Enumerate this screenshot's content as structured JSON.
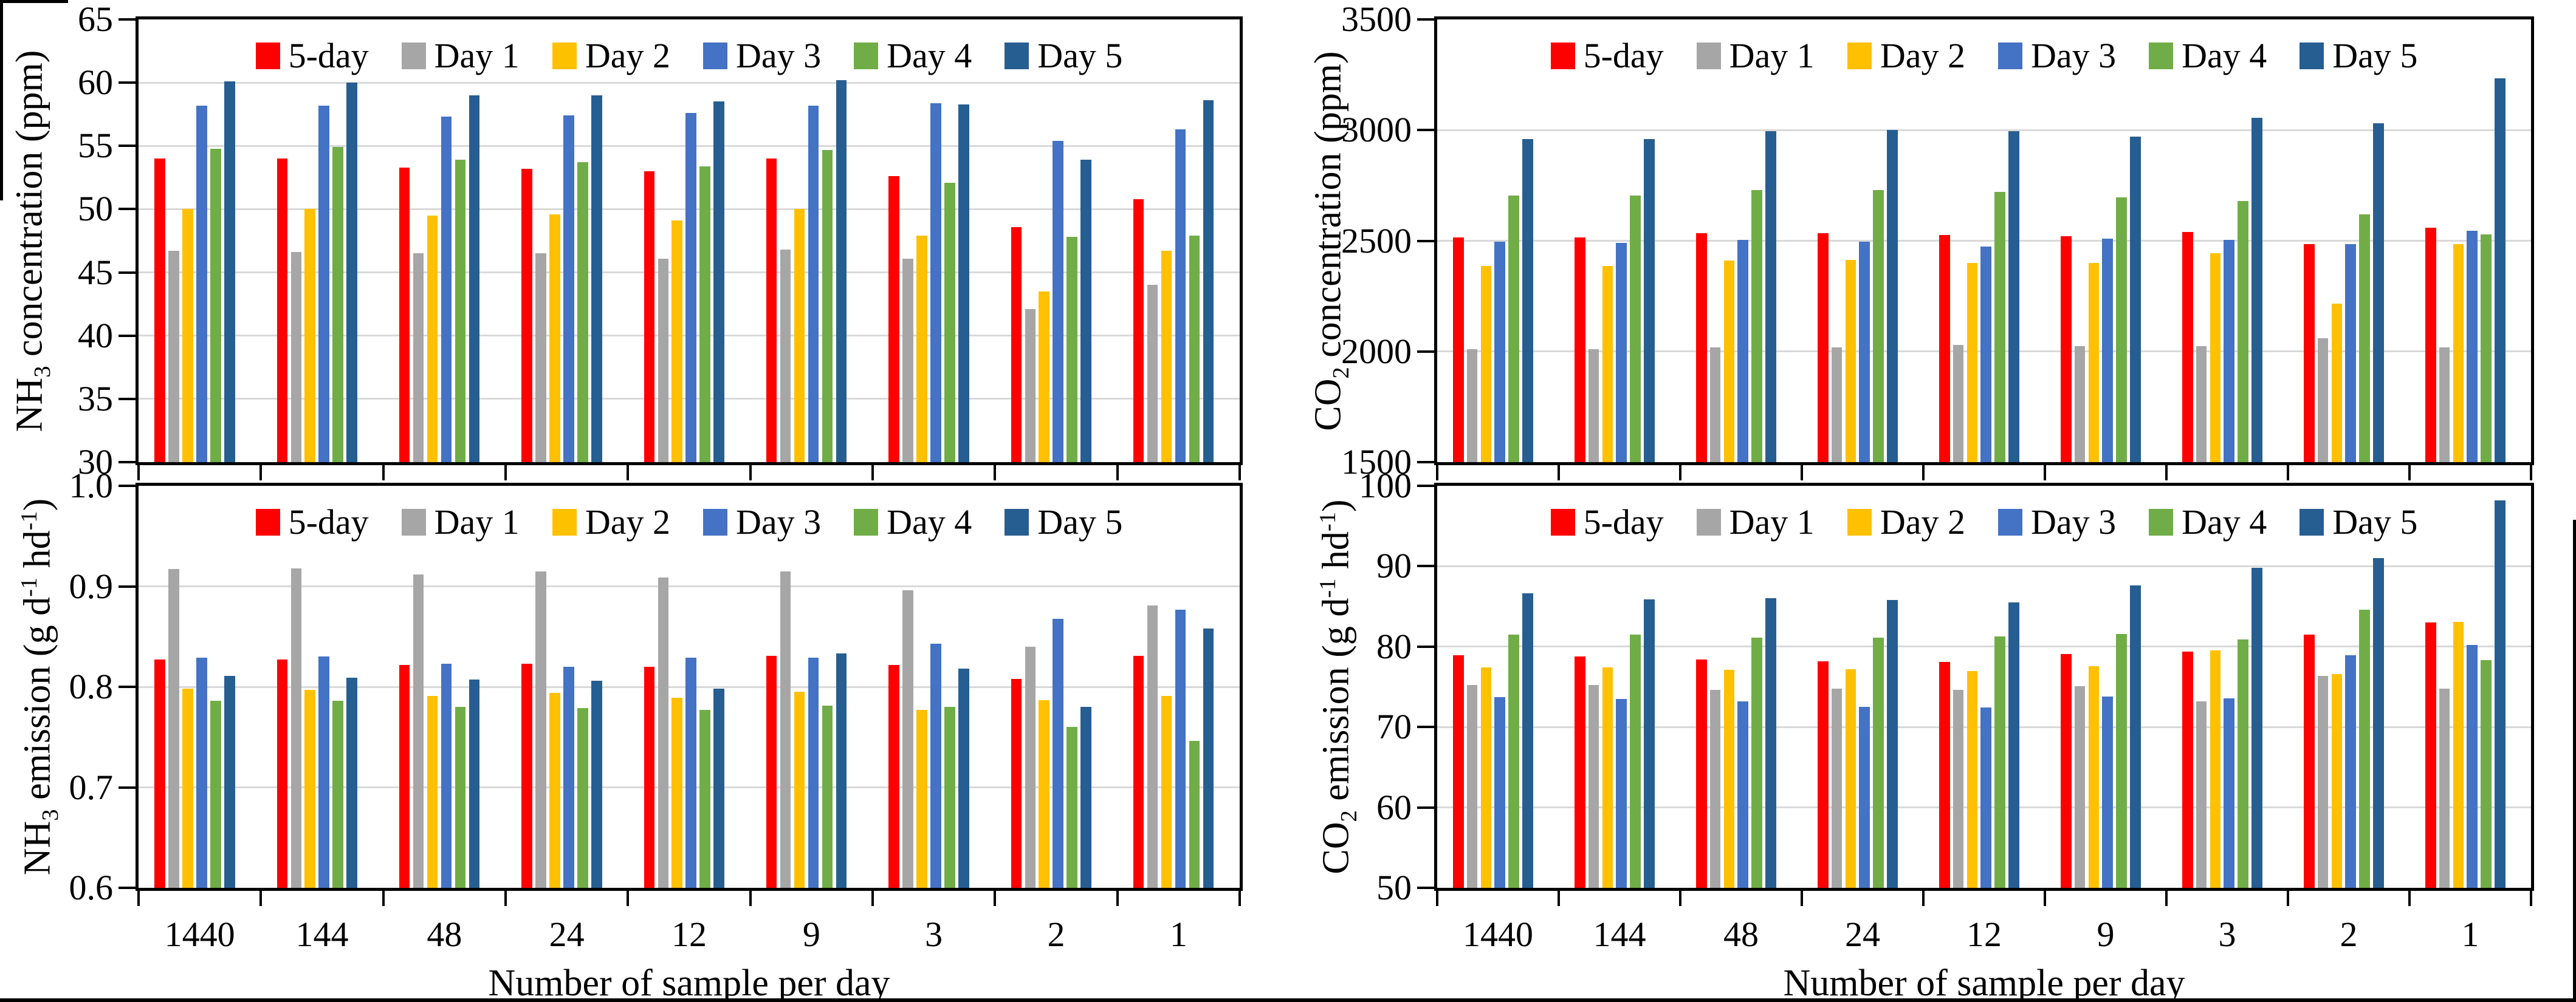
{
  "figure": {
    "xlabel": "Number of sample per day",
    "categories": [
      "1440",
      "144",
      "48",
      "24",
      "12",
      "9",
      "3",
      "2",
      "1"
    ],
    "legend_entries": [
      "5-day",
      "Day 1",
      "Day 2",
      "Day 3",
      "Day 4",
      "Day 5"
    ],
    "colors": {
      "5-day": "#FF0000",
      "Day 1": "#A6A6A6",
      "Day 2": "#FFC000",
      "Day 3": "#4472C4",
      "Day 4": "#70AD47",
      "Day 5": "#265E91",
      "gridline": "#D9D9D9",
      "axis": "#000000"
    }
  },
  "chart_data": [
    {
      "id": "nh3-concentration",
      "type": "bar",
      "position": "top-left",
      "title": "",
      "ylabel": "NH₃ concentration (ppm)",
      "ylabel_parts": [
        {
          "t": "NH"
        },
        {
          "t": "3",
          "s": "sub"
        },
        {
          "t": " concentration (ppm)"
        }
      ],
      "xlabel": "",
      "ylim": [
        30,
        65
      ],
      "ytick_values": [
        30,
        35,
        40,
        45,
        50,
        55,
        60,
        65
      ],
      "ytick_labels": [
        "30",
        "35",
        "40",
        "45",
        "50",
        "55",
        "60",
        "65"
      ],
      "grid": true,
      "legend_position": "top-center-inside",
      "categories": [
        "1440",
        "144",
        "48",
        "24",
        "12",
        "9",
        "3",
        "2",
        "1"
      ],
      "series": [
        {
          "name": "5-day",
          "color": "#FF0000",
          "values": [
            54.0,
            54.0,
            53.3,
            53.2,
            53.0,
            54.0,
            52.6,
            48.6,
            50.8
          ]
        },
        {
          "name": "Day 1",
          "color": "#A6A6A6",
          "values": [
            46.7,
            46.6,
            46.5,
            46.5,
            46.1,
            46.8,
            46.1,
            42.1,
            44.0
          ]
        },
        {
          "name": "Day 2",
          "color": "#FFC000",
          "values": [
            50.0,
            50.0,
            49.5,
            49.6,
            49.1,
            50.0,
            47.9,
            43.5,
            46.7
          ]
        },
        {
          "name": "Day 3",
          "color": "#4472C4",
          "values": [
            58.2,
            58.2,
            57.3,
            57.4,
            57.6,
            58.2,
            58.4,
            55.4,
            56.3
          ]
        },
        {
          "name": "Day 4",
          "color": "#70AD47",
          "values": [
            54.8,
            54.9,
            53.9,
            53.7,
            53.4,
            54.7,
            52.1,
            47.8,
            47.9
          ]
        },
        {
          "name": "Day 5",
          "color": "#265E91",
          "values": [
            60.1,
            60.0,
            59.0,
            59.0,
            58.5,
            60.2,
            58.3,
            53.9,
            58.6
          ]
        }
      ]
    },
    {
      "id": "co2-concentration",
      "type": "bar",
      "position": "top-right",
      "title": "",
      "ylabel": "CO₂ concentration (ppm)",
      "ylabel_parts": [
        {
          "t": "CO"
        },
        {
          "t": "2",
          "s": "sub"
        },
        {
          "t": " concentration (ppm)"
        }
      ],
      "xlabel": "",
      "ylim": [
        1500,
        3500
      ],
      "ytick_values": [
        1500,
        2000,
        2500,
        3000,
        3500
      ],
      "ytick_labels": [
        "1500",
        "2000",
        "2500",
        "3000",
        "3500"
      ],
      "grid": true,
      "legend_position": "top-center-inside",
      "categories": [
        "1440",
        "144",
        "48",
        "24",
        "12",
        "9",
        "3",
        "2",
        "1"
      ],
      "series": [
        {
          "name": "5-day",
          "color": "#FF0000",
          "values": [
            2515,
            2515,
            2535,
            2535,
            2525,
            2520,
            2540,
            2485,
            2560
          ]
        },
        {
          "name": "Day 1",
          "color": "#A6A6A6",
          "values": [
            2010,
            2010,
            2020,
            2020,
            2030,
            2025,
            2025,
            2060,
            2020
          ]
        },
        {
          "name": "Day 2",
          "color": "#FFC000",
          "values": [
            2385,
            2385,
            2410,
            2415,
            2400,
            2400,
            2445,
            2215,
            2485
          ]
        },
        {
          "name": "Day 3",
          "color": "#4472C4",
          "values": [
            2495,
            2490,
            2505,
            2495,
            2475,
            2510,
            2505,
            2485,
            2545
          ]
        },
        {
          "name": "Day 4",
          "color": "#70AD47",
          "values": [
            2705,
            2705,
            2730,
            2730,
            2720,
            2695,
            2680,
            2620,
            2530
          ]
        },
        {
          "name": "Day 5",
          "color": "#265E91",
          "values": [
            2960,
            2960,
            2995,
            3000,
            2995,
            2970,
            3055,
            3030,
            3235
          ]
        }
      ]
    },
    {
      "id": "nh3-emission",
      "type": "bar",
      "position": "bottom-left",
      "title": "",
      "ylabel": "NH₃ emission (g d⁻¹ hd⁻¹)",
      "ylabel_parts": [
        {
          "t": "NH"
        },
        {
          "t": "3",
          "s": "sub"
        },
        {
          "t": " emission (g d"
        },
        {
          "t": "-1",
          "s": "sup"
        },
        {
          "t": " hd"
        },
        {
          "t": "-1",
          "s": "sup"
        },
        {
          "t": ")"
        }
      ],
      "xlabel": "Number of sample per day",
      "ylim": [
        0.6,
        1.0
      ],
      "ytick_values": [
        0.6,
        0.7,
        0.8,
        0.9,
        1.0
      ],
      "ytick_labels": [
        "0.6",
        "0.7",
        "0.8",
        "0.9",
        "1.0"
      ],
      "grid": true,
      "legend_position": "top-center-inside",
      "categories": [
        "1440",
        "144",
        "48",
        "24",
        "12",
        "9",
        "3",
        "2",
        "1"
      ],
      "series": [
        {
          "name": "5-day",
          "color": "#FF0000",
          "values": [
            0.827,
            0.827,
            0.822,
            0.823,
            0.82,
            0.831,
            0.822,
            0.808,
            0.831
          ]
        },
        {
          "name": "Day 1",
          "color": "#A6A6A6",
          "values": [
            0.917,
            0.918,
            0.912,
            0.915,
            0.909,
            0.915,
            0.896,
            0.84,
            0.881
          ]
        },
        {
          "name": "Day 2",
          "color": "#FFC000",
          "values": [
            0.798,
            0.797,
            0.791,
            0.794,
            0.789,
            0.795,
            0.777,
            0.787,
            0.791
          ]
        },
        {
          "name": "Day 3",
          "color": "#4472C4",
          "values": [
            0.829,
            0.83,
            0.823,
            0.82,
            0.829,
            0.829,
            0.843,
            0.868,
            0.877
          ]
        },
        {
          "name": "Day 4",
          "color": "#70AD47",
          "values": [
            0.786,
            0.786,
            0.78,
            0.779,
            0.777,
            0.781,
            0.78,
            0.76,
            0.746
          ]
        },
        {
          "name": "Day 5",
          "color": "#265E91",
          "values": [
            0.811,
            0.809,
            0.807,
            0.806,
            0.798,
            0.833,
            0.818,
            0.78,
            0.858
          ]
        }
      ]
    },
    {
      "id": "co2-emission",
      "type": "bar",
      "position": "bottom-right",
      "title": "",
      "ylabel": "CO₂ emission (g d⁻¹ hd⁻¹)",
      "ylabel_parts": [
        {
          "t": "CO"
        },
        {
          "t": "2",
          "s": "sub"
        },
        {
          "t": " emission (g d"
        },
        {
          "t": "-1",
          "s": "sup"
        },
        {
          "t": " hd"
        },
        {
          "t": "-1",
          "s": "sup"
        },
        {
          "t": ")"
        }
      ],
      "xlabel": "Number of sample per day",
      "ylim": [
        50,
        100
      ],
      "ytick_values": [
        50,
        60,
        70,
        80,
        90,
        100
      ],
      "ytick_labels": [
        "50",
        "60",
        "70",
        "80",
        "90",
        "100"
      ],
      "grid": true,
      "legend_position": "top-center-inside",
      "categories": [
        "1440",
        "144",
        "48",
        "24",
        "12",
        "9",
        "3",
        "2",
        "1"
      ],
      "series": [
        {
          "name": "5-day",
          "color": "#FF0000",
          "values": [
            78.9,
            78.8,
            78.4,
            78.2,
            78.1,
            79.1,
            79.4,
            81.5,
            83.0
          ]
        },
        {
          "name": "Day 1",
          "color": "#A6A6A6",
          "values": [
            75.2,
            75.2,
            74.6,
            74.8,
            74.6,
            75.1,
            73.2,
            76.4,
            74.8
          ]
        },
        {
          "name": "Day 2",
          "color": "#FFC000",
          "values": [
            77.4,
            77.4,
            77.1,
            77.2,
            77.0,
            77.6,
            79.5,
            76.6,
            83.1
          ]
        },
        {
          "name": "Day 3",
          "color": "#4472C4",
          "values": [
            73.7,
            73.5,
            73.2,
            72.5,
            72.4,
            73.8,
            73.6,
            78.9,
            80.2
          ]
        },
        {
          "name": "Day 4",
          "color": "#70AD47",
          "values": [
            81.5,
            81.5,
            81.1,
            81.1,
            81.3,
            81.6,
            80.9,
            84.6,
            78.3
          ]
        },
        {
          "name": "Day 5",
          "color": "#265E91",
          "values": [
            86.6,
            85.9,
            86.0,
            85.8,
            85.5,
            87.6,
            89.8,
            91.0,
            98.2
          ]
        }
      ]
    }
  ]
}
